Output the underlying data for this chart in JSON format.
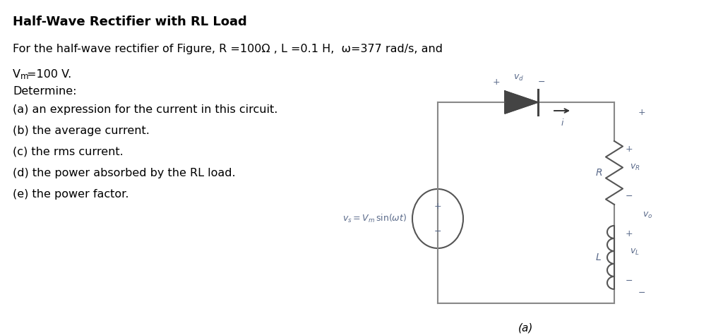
{
  "title": "Half-Wave Rectifier with RL Load",
  "line1": "For the half-wave rectifier of Figure, R =100Ω , L =0.1 H,  ω=377 rad/s, and",
  "line2a": "V",
  "line2b": "m",
  "line2c": "=100 V.",
  "line3": "Determine:",
  "items": [
    "(a) an expression for the current in this circuit.",
    "(b) the average current.",
    "(c) the rms current.",
    "(d) the power absorbed by the RL load.",
    "(e) the power factor."
  ],
  "caption": "(a)",
  "bg_color": "#ffffff",
  "text_color": "#000000",
  "circuit_color": "#888888",
  "label_color": "#5a6a8a"
}
